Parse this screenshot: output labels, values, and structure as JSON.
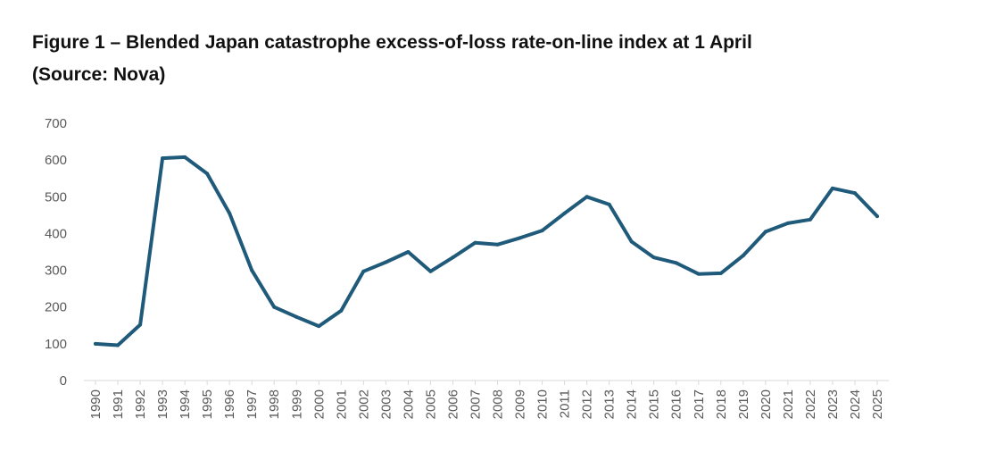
{
  "figure": {
    "title_line1": "Figure 1 – Blended Japan catastrophe excess-of-loss rate-on-line index at 1 April",
    "title_line2": "(Source: Nova)"
  },
  "chart_data": {
    "type": "line",
    "title": "Figure 1 – Blended Japan catastrophe excess-of-loss rate-on-line index at 1 April (Source: Nova)",
    "xlabel": "",
    "ylabel": "",
    "ylim": [
      0,
      700
    ],
    "yticks": [
      0,
      100,
      200,
      300,
      400,
      500,
      600,
      700
    ],
    "grid": false,
    "legend": "none",
    "line_color": "#1f5a7a",
    "x": [
      "1990",
      "1991",
      "1992",
      "1993",
      "1994",
      "1995",
      "1996",
      "1997",
      "1998",
      "1999",
      "2000",
      "2001",
      "2002",
      "2003",
      "2004",
      "2005",
      "2006",
      "2007",
      "2008",
      "2009",
      "2010",
      "2011",
      "2012",
      "2013",
      "2014",
      "2015",
      "2016",
      "2017",
      "2018",
      "2019",
      "2020",
      "2021",
      "2022",
      "2023",
      "2024",
      "2025"
    ],
    "series": [
      {
        "values": [
          100,
          96,
          152,
          605,
          608,
          563,
          455,
          300,
          200,
          173,
          148,
          190,
          297,
          322,
          350,
          297,
          335,
          375,
          370,
          388,
          408,
          455,
          500,
          479,
          378,
          335,
          320,
          290,
          292,
          340,
          405,
          428,
          438,
          523,
          510,
          447
        ]
      }
    ]
  }
}
